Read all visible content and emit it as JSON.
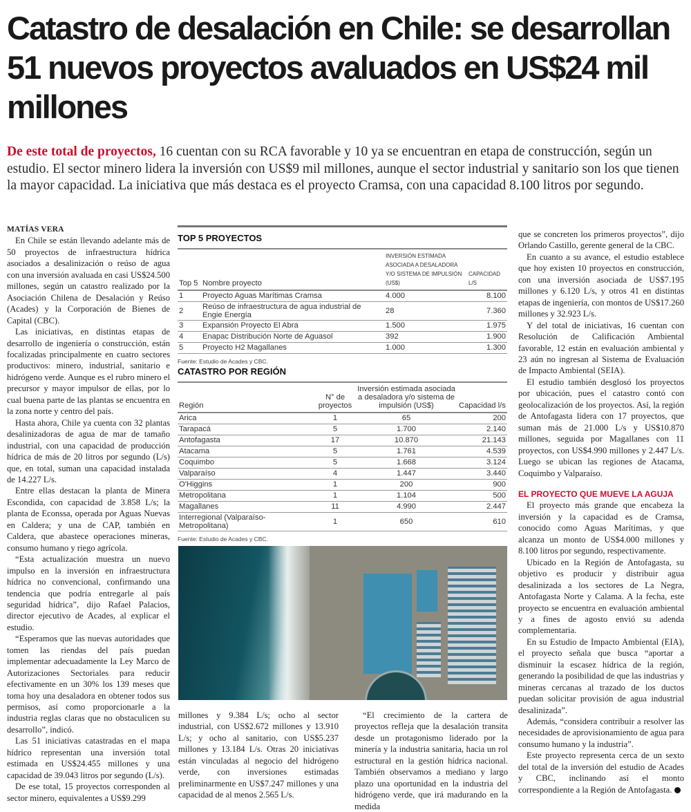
{
  "title": "Catastro de desalación en Chile: se desarrollan 51 nuevos proyectos avaluados en US$24 mil millones",
  "lead": {
    "highlight": "De este total de proyectos,",
    "text": " 16 cuentan con su RCA favorable y 10 ya se encuentran en etapa de construcción, según un estudio. El sector minero lidera la inversión con US$9 mil millones, aunque el sector industrial y sanitario son los que tienen la mayor capacidad. La iniciativa que más destaca es el proyecto Cramsa, con una capacidad 8.100 litros por segundo."
  },
  "author": "MATÍAS VERA",
  "col1": [
    "En Chile se están llevando adelante más de 50 proyectos de infraestructura hídrica asociados a desalinización o reúso de agua con una inversión avaluada en casi US$24.500 millones, según un catastro realizado por la Asociación Chilena de Desalación y Reúso (Acades) y la Corporación de Bienes de Capital (CBC).",
    "Las iniciativas, en distintas etapas de desarrollo de ingeniería o construcción, están focalizadas principalmente en cuatro sectores productivos: minero, industrial, sanitario e hidrógeno verde. Aunque es el rubro minero el precursor y mayor impulsor de ellas, por lo cual buena parte de las plantas se encuentra en la zona norte y centro del país.",
    "Hasta ahora, Chile ya cuenta con 32 plantas desalinizadoras de agua de mar de tamaño industrial, con una capacidad de producción hídrica de más de 20 litros por segundo (L/s) que, en total, suman una capacidad instalada de 14.227 L/s.",
    "Entre ellas destacan la planta de Minera Escondida, con capacidad de 3.858 L/s; la planta de Econssa, operada por Aguas Nuevas en Caldera; y una de CAP, también en Caldera, que abastece operaciones mineras, consumo humano y riego agrícola.",
    "“Esta actualización muestra un nuevo impulso en la inversión en infraestructura hídrica no convencional, confirmando una tendencia que podría entregarle al país seguridad hídrica”, dijo Rafael Palacios, director ejecutivo de Acades, al explicar el estudio.",
    "“Esperamos que las nuevas autoridades que tomen las riendas del país puedan implementar adecuadamente la Ley Marco de Autorizaciones Sectoriales para reducir efectivamente en un 30% los 139 meses que toma hoy una desaladora en obtener todos sus permisos, así como proporcionarle a la industria reglas claras que no obstaculicen su desarrollo”, indicó.",
    "Las 51 iniciativas catastradas en el mapa hídrico representan una inversión total estimada en US$24.455 millones y una capacidad de 39.043 litros por segundo (L/s).",
    "De ese total, 15 proyectos corresponden al sector minero, equivalentes a US$9.299"
  ],
  "col2a": "millones y 9.384 L/s; ocho al sector industrial, con US$2.672 millones y 13.910 L/s; y ocho al sanitario, con US$5.237 millones y 13.184 L/s. Otras 20 iniciativas están vinculadas al negocio del hidrógeno verde, con inversiones estimadas preliminarmente en US$7.247 millones y una capacidad de al menos 2.565 L/s.",
  "col2b": "“El crecimiento de la cartera de proyectos refleja que la desalación transita desde un protagonismo liderado por la minería y la industria sanitaria, hacia un rol estructural en la gestión hídrica nacional. También observamos a mediano y largo plazo una oportunidad en la industria del hidrógeno verde, que irá madurando en la medida",
  "col3": [
    "que se concreten los primeros proyectos”, dijo Orlando Castillo, gerente general de la CBC.",
    "En cuanto a su avance, el estudio establece que hoy existen 10 proyectos en construcción, con una inversión asociada de US$7.195 millones y 6.120 L/s, y otros 41 en distintas etapas de ingeniería, con montos de US$17.260 millones y 32.923 L/s.",
    "Y del total de iniciativas, 16 cuentan con Resolución de Calificación Ambiental favorable, 12 están en evaluación ambiental y 23 aún no ingresan al Sistema de Evaluación de Impacto Ambiental (SEIA).",
    "El estudio también desglosó los proyectos por ubicación, pues el catastro contó con geolocalización de los proyectos. Así, la región de Antofagasta lidera con 17 proyectos, que suman más de 21.000 L/s y US$10.870 millones, seguida por Magallanes con 11 proyectos, con US$4.990 millones y 2.447 L/s. Luego se ubican las regiones de Atacama, Coquimbo y Valparaíso."
  ],
  "subhead": "EL PROYECTO QUE MUEVE LA AGUJA",
  "col3b": [
    "El proyecto más grande que encabeza la inversión y la capacidad es de Cramsa, conocido como Aguas Marítimas, y que alcanza un monto de US$4.000 millones y 8.100 litros por segundo, respectivamente.",
    "Ubicado en la Región de Antofagasta, su objetivo es producir y distribuir agua desalinizada a los sectores de La Negra, Antofagasta Norte y Calama. A la fecha, este proyecto se encuentra en evaluación ambiental y a fines de agosto envió su adenda complementaria.",
    "En su Estudio de Impacto Ambiental (EIA), el proyecto señala que busca “aportar a disminuir la escasez hídrica de la región, generando la posibilidad de que las industrias y mineras cercanas al trazado de los ductos puedan solicitar provisión de agua industrial desalinizada”.",
    "Además, “considera contribuir a resolver las necesidades de aprovisionamiento de agua para consumo humano y la industria”.",
    "Este proyecto representa cerca de un sexto del total de la inversión del estudio de Acades y CBC, inclinando así el monto correspondiente a la Región de Antofagasta."
  ],
  "top5": {
    "title": "TOP 5 PROYECTOS",
    "headers": [
      "Top 5",
      "Nombre proyecto",
      "Inversión estimada asociada a desaladora y/o sistema de impulsión (US$)",
      "Capacidad l/s"
    ],
    "rows": [
      [
        "1",
        "Proyecto Aguas Marítimas Cramsa",
        "4.000",
        "8.100"
      ],
      [
        "2",
        "Reúso de infraestructura de agua industrial de Engie Energía",
        "28",
        "7.360"
      ],
      [
        "3",
        "Expansión Proyecto El Abra",
        "1.500",
        "1.975"
      ],
      [
        "4",
        "Enapac Distribución Norte de Aguasol",
        "392",
        "1.900"
      ],
      [
        "5",
        "Proyecto H2 Magallanes",
        "1.000",
        "1.300"
      ]
    ],
    "source": "Fuente: Estudio de Acades y CBC."
  },
  "region": {
    "title": "CATASTRO POR REGIÓN",
    "headers": [
      "Región",
      "N° de proyectos",
      "Inversión estimada asociada a desaladora y/o sistema de impulsión (US$)",
      "Capacidad l/s"
    ],
    "rows": [
      [
        "Arica",
        "1",
        "65",
        "200"
      ],
      [
        "Tarapacá",
        "5",
        "1.700",
        "2.140"
      ],
      [
        "Antofagasta",
        "17",
        "10.870",
        "21.143"
      ],
      [
        "Atacama",
        "5",
        "1.761",
        "4.539"
      ],
      [
        "Coquimbo",
        "5",
        "1.668",
        "3.124"
      ],
      [
        "Valparaíso",
        "4",
        "1.447",
        "3.440"
      ],
      [
        "O'Higgins",
        "1",
        "200",
        "900"
      ],
      [
        "Metropolitana",
        "1",
        "1.104",
        "500"
      ],
      [
        "Magallanes",
        "11",
        "4.990",
        "2.447"
      ],
      [
        "Interregional (Valparaíso- Metropolitana)",
        "1",
        "650",
        "610"
      ]
    ],
    "source": "Fuente: Estudio de Acades y CBC."
  },
  "colors": {
    "accent": "#c8102e"
  }
}
